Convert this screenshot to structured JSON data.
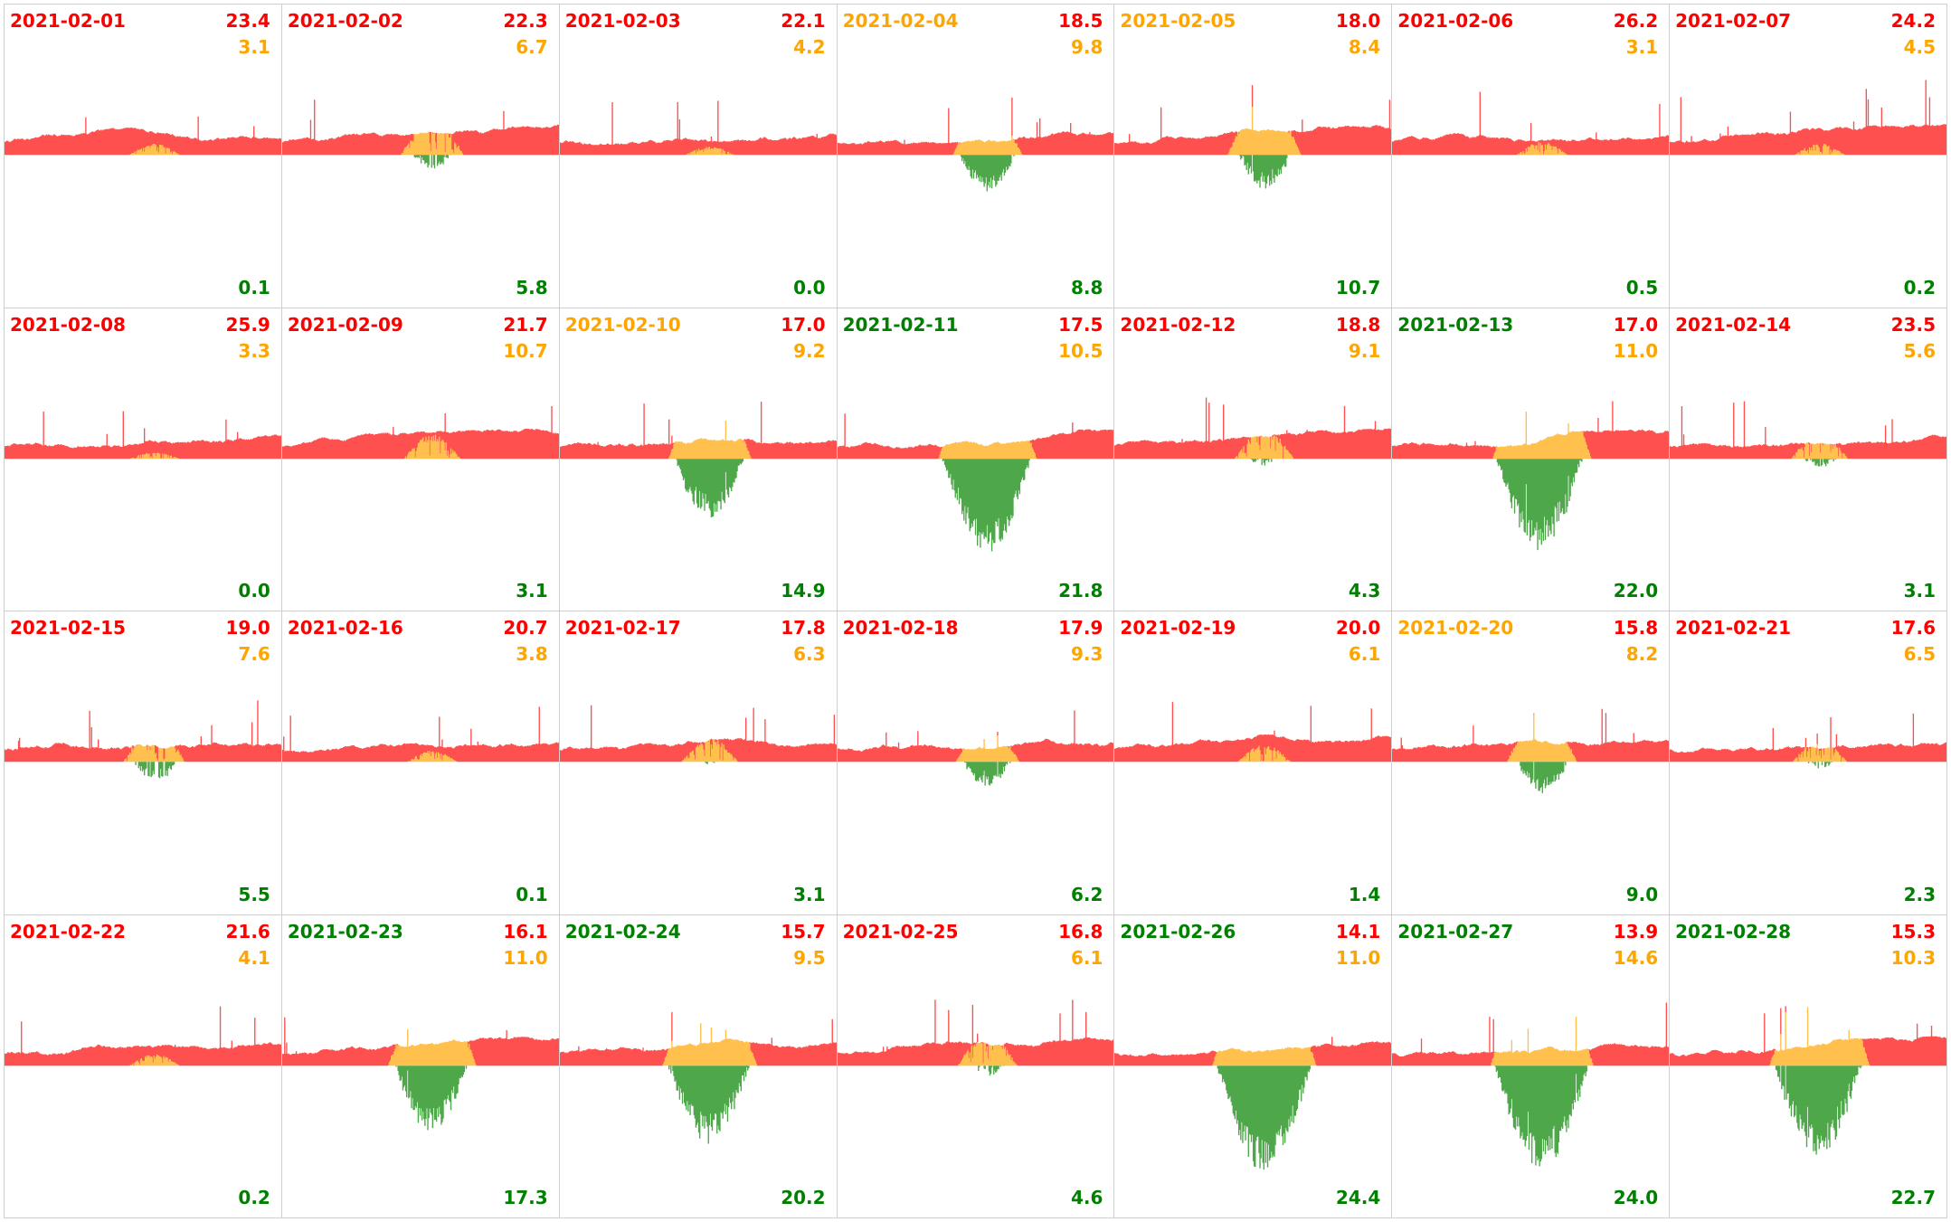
{
  "colors": {
    "red": "#ff0000",
    "orange": "#ffa500",
    "green": "#008000",
    "fill_red": "#ff5050",
    "fill_orange": "#ffc04d",
    "fill_green": "#4ea84a"
  },
  "chart_data": {
    "type": "bar",
    "title": "",
    "layout": "small multiples, 7 columns x 4 rows",
    "series_keys": [
      "red",
      "orange",
      "green"
    ],
    "days": [
      {
        "date": "2021-02-01",
        "status": "red",
        "red": "23.4",
        "orange": "3.1",
        "green": "0.1"
      },
      {
        "date": "2021-02-02",
        "status": "red",
        "red": "22.3",
        "orange": "6.7",
        "green": "5.8"
      },
      {
        "date": "2021-02-03",
        "status": "red",
        "red": "22.1",
        "orange": "4.2",
        "green": "0.0"
      },
      {
        "date": "2021-02-04",
        "status": "orange",
        "red": "18.5",
        "orange": "9.8",
        "green": "8.8"
      },
      {
        "date": "2021-02-05",
        "status": "orange",
        "red": "18.0",
        "orange": "8.4",
        "green": "10.7"
      },
      {
        "date": "2021-02-06",
        "status": "red",
        "red": "26.2",
        "orange": "3.1",
        "green": "0.5"
      },
      {
        "date": "2021-02-07",
        "status": "red",
        "red": "24.2",
        "orange": "4.5",
        "green": "0.2"
      },
      {
        "date": "2021-02-08",
        "status": "red",
        "red": "25.9",
        "orange": "3.3",
        "green": "0.0"
      },
      {
        "date": "2021-02-09",
        "status": "red",
        "red": "21.7",
        "orange": "10.7",
        "green": "3.1"
      },
      {
        "date": "2021-02-10",
        "status": "orange",
        "red": "17.0",
        "orange": "9.2",
        "green": "14.9"
      },
      {
        "date": "2021-02-11",
        "status": "green",
        "red": "17.5",
        "orange": "10.5",
        "green": "21.8"
      },
      {
        "date": "2021-02-12",
        "status": "red",
        "red": "18.8",
        "orange": "9.1",
        "green": "4.3"
      },
      {
        "date": "2021-02-13",
        "status": "green",
        "red": "17.0",
        "orange": "11.0",
        "green": "22.0"
      },
      {
        "date": "2021-02-14",
        "status": "red",
        "red": "23.5",
        "orange": "5.6",
        "green": "3.1"
      },
      {
        "date": "2021-02-15",
        "status": "red",
        "red": "19.0",
        "orange": "7.6",
        "green": "5.5"
      },
      {
        "date": "2021-02-16",
        "status": "red",
        "red": "20.7",
        "orange": "3.8",
        "green": "0.1"
      },
      {
        "date": "2021-02-17",
        "status": "red",
        "red": "17.8",
        "orange": "6.3",
        "green": "3.1"
      },
      {
        "date": "2021-02-18",
        "status": "red",
        "red": "17.9",
        "orange": "9.3",
        "green": "6.2"
      },
      {
        "date": "2021-02-19",
        "status": "red",
        "red": "20.0",
        "orange": "6.1",
        "green": "1.4"
      },
      {
        "date": "2021-02-20",
        "status": "orange",
        "red": "15.8",
        "orange": "8.2",
        "green": "9.0"
      },
      {
        "date": "2021-02-21",
        "status": "red",
        "red": "17.6",
        "orange": "6.5",
        "green": "2.3"
      },
      {
        "date": "2021-02-22",
        "status": "red",
        "red": "21.6",
        "orange": "4.1",
        "green": "0.2"
      },
      {
        "date": "2021-02-23",
        "status": "green",
        "red": "16.1",
        "orange": "11.0",
        "green": "17.3"
      },
      {
        "date": "2021-02-24",
        "status": "green",
        "red": "15.7",
        "orange": "9.5",
        "green": "20.2"
      },
      {
        "date": "2021-02-25",
        "status": "red",
        "red": "16.8",
        "orange": "6.1",
        "green": "4.6"
      },
      {
        "date": "2021-02-26",
        "status": "green",
        "red": "14.1",
        "orange": "11.0",
        "green": "24.4"
      },
      {
        "date": "2021-02-27",
        "status": "green",
        "red": "13.9",
        "orange": "14.6",
        "green": "24.0"
      },
      {
        "date": "2021-02-28",
        "status": "green",
        "red": "15.3",
        "orange": "10.3",
        "green": "22.7"
      }
    ]
  }
}
